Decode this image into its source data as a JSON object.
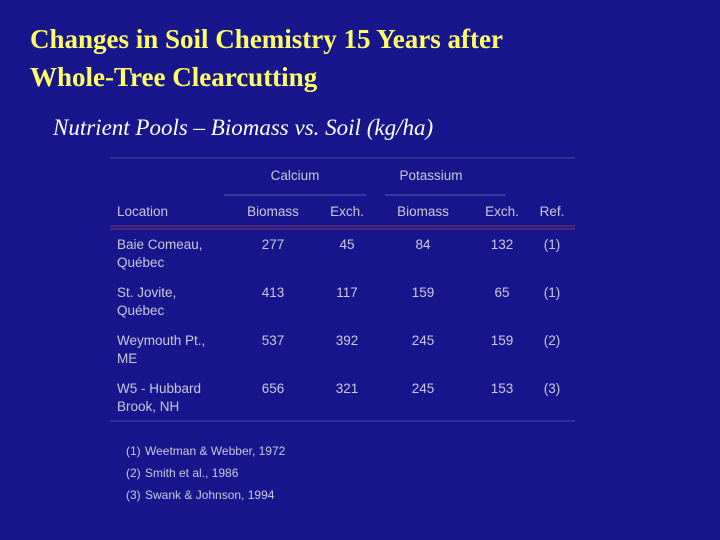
{
  "header": {
    "title_lines": [
      "Changes in Soil Chemistry 15 Years after",
      "Whole-Tree Clearcutting"
    ],
    "subtitle": "Nutrient Pools – Biomass vs. Soil (kg/ha)"
  },
  "table": {
    "groups": [
      "Calcium",
      "Potassium"
    ],
    "columns": [
      "Location",
      "Biomass",
      "Exch.",
      "Biomass",
      "Exch.",
      "Ref."
    ],
    "rows": [
      {
        "location": [
          "Baie Comeau,",
          "Québec"
        ],
        "cells": [
          277,
          45,
          84,
          132,
          "(1)"
        ]
      },
      {
        "location": [
          "St. Jovite,",
          "Québec"
        ],
        "cells": [
          413,
          117,
          159,
          65,
          "(1)"
        ]
      },
      {
        "location": [
          "Weymouth Pt.,",
          "ME"
        ],
        "cells": [
          537,
          392,
          245,
          159,
          "(2)"
        ]
      },
      {
        "location": [
          "W5 - Hubbard",
          "Brook, NH"
        ],
        "cells": [
          656,
          321,
          245,
          153,
          "(3)"
        ]
      }
    ],
    "footnotes": [
      {
        "marker": "(1)",
        "text": "Weetman & Webber, 1972"
      },
      {
        "marker": "(2)",
        "text": "Smith et al., 1986"
      },
      {
        "marker": "(3)",
        "text": "Swank & Johnson, 1994"
      }
    ]
  }
}
